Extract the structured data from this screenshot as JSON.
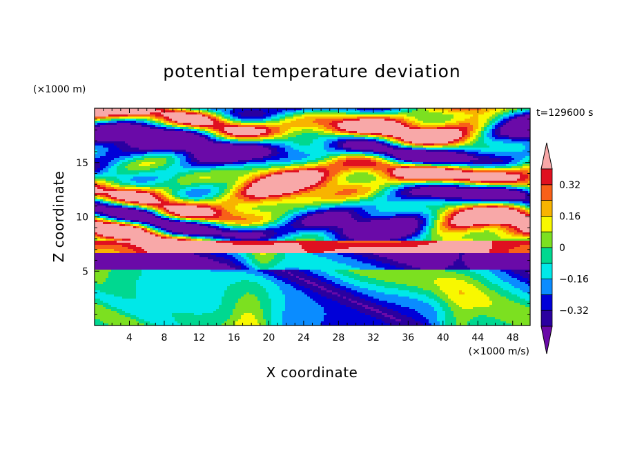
{
  "chart_data": {
    "type": "heatmap",
    "title": "potential temperature deviation",
    "xlabel": "X coordinate",
    "ylabel": "Z coordinate",
    "x_unit": "(×1000 m/s)",
    "y_unit": "(×1000 m)",
    "time_label": "t=129600 s",
    "xlim": [
      0,
      50
    ],
    "ylim": [
      0,
      20
    ],
    "x_ticks": [
      4,
      8,
      12,
      16,
      20,
      24,
      28,
      32,
      36,
      40,
      44,
      48
    ],
    "y_ticks": [
      5,
      10,
      15
    ],
    "colorbar": {
      "labels": [
        "0.32",
        "0.16",
        "0",
        "−0.16",
        "−0.32"
      ],
      "label_values": [
        0.32,
        0.16,
        0,
        -0.16,
        -0.32
      ],
      "levels": [
        -0.4,
        -0.32,
        -0.24,
        -0.16,
        -0.08,
        0,
        0.08,
        0.16,
        0.24,
        0.32,
        0.4
      ],
      "colors": [
        "#6a0aa8",
        "#2a00a0",
        "#0000d8",
        "#0a8cff",
        "#00e8e8",
        "#00d890",
        "#7ce020",
        "#f8f800",
        "#f8b400",
        "#f86018",
        "#e01020",
        "#f8a8a8"
      ],
      "over_color": "#f8a8a8",
      "under_color": "#6a0aa8"
    }
  }
}
